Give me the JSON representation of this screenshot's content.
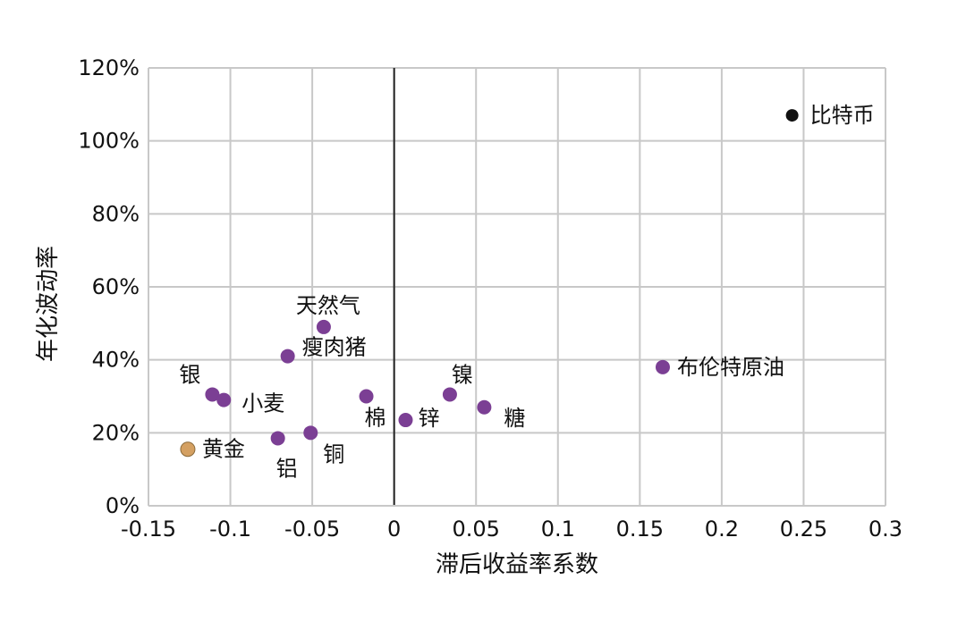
{
  "chart_data": {
    "type": "scatter",
    "title": "",
    "xlabel": "滞后收益率系数",
    "ylabel": "年化波动率",
    "xlim": [
      -0.15,
      0.3
    ],
    "ylim": [
      0,
      1.2
    ],
    "x_ticks": [
      {
        "value": -0.15,
        "label": "-0.15"
      },
      {
        "value": -0.1,
        "label": "-0.1"
      },
      {
        "value": -0.05,
        "label": "-0.05"
      },
      {
        "value": 0,
        "label": "0"
      },
      {
        "value": 0.05,
        "label": "0.05"
      },
      {
        "value": 0.1,
        "label": "0.1"
      },
      {
        "value": 0.15,
        "label": "0.15"
      },
      {
        "value": 0.2,
        "label": "0.2"
      },
      {
        "value": 0.25,
        "label": "0.25"
      },
      {
        "value": 0.3,
        "label": "0.3"
      }
    ],
    "y_ticks": [
      {
        "value": 0,
        "label": "0%"
      },
      {
        "value": 0.2,
        "label": "20%"
      },
      {
        "value": 0.4,
        "label": "40%"
      },
      {
        "value": 0.6,
        "label": "60%"
      },
      {
        "value": 0.8,
        "label": "80%"
      },
      {
        "value": 1.0,
        "label": "100%"
      },
      {
        "value": 1.2,
        "label": "120%"
      }
    ],
    "grid": true,
    "colors": {
      "commodity": "#7b3f94",
      "gold": "#d4a062",
      "bitcoin": "#111111",
      "grid": "#c8c8c8",
      "axis": "#222222"
    },
    "points": [
      {
        "name": "比特币",
        "x": 0.243,
        "y": 1.07,
        "color": "#111111"
      },
      {
        "name": "布伦特原油",
        "x": 0.164,
        "y": 0.38,
        "color": "#7b3f94"
      },
      {
        "name": "天然气",
        "x": -0.043,
        "y": 0.49,
        "color": "#7b3f94"
      },
      {
        "name": "瘦肉猪",
        "x": -0.065,
        "y": 0.41,
        "color": "#7b3f94"
      },
      {
        "name": "银",
        "x": -0.111,
        "y": 0.305,
        "color": "#7b3f94"
      },
      {
        "name": "小麦",
        "x": -0.104,
        "y": 0.29,
        "color": "#7b3f94"
      },
      {
        "name": "棉",
        "x": -0.017,
        "y": 0.3,
        "color": "#7b3f94"
      },
      {
        "name": "镍",
        "x": 0.034,
        "y": 0.305,
        "color": "#7b3f94"
      },
      {
        "name": "糖",
        "x": 0.055,
        "y": 0.27,
        "color": "#7b3f94"
      },
      {
        "name": "锌",
        "x": 0.007,
        "y": 0.235,
        "color": "#7b3f94"
      },
      {
        "name": "铜",
        "x": -0.051,
        "y": 0.2,
        "color": "#7b3f94"
      },
      {
        "name": "铝",
        "x": -0.071,
        "y": 0.185,
        "color": "#7b3f94"
      },
      {
        "name": "黄金",
        "x": -0.126,
        "y": 0.155,
        "color": "#d4a062"
      }
    ]
  }
}
